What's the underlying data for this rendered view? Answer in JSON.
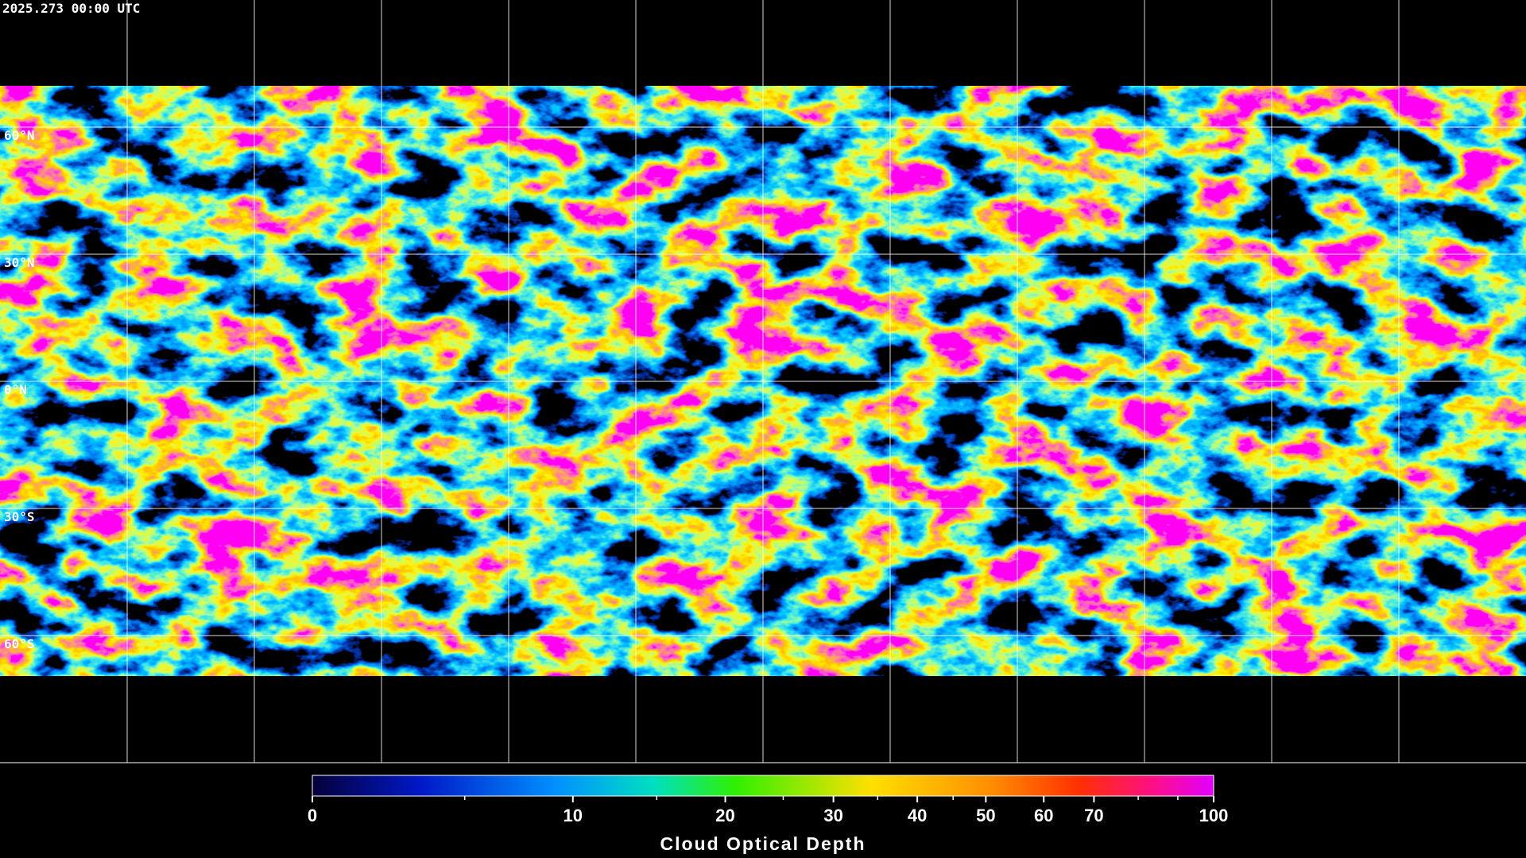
{
  "header": {
    "timestamp": "2025.273 00:00 UTC"
  },
  "map": {
    "lat_lines": [
      {
        "value": 60,
        "label": "60°N"
      },
      {
        "value": 30,
        "label": "30°N"
      },
      {
        "value": 0,
        "label": "0°N"
      },
      {
        "value": -30,
        "label": "30°S"
      },
      {
        "value": -60,
        "label": "60°S"
      }
    ]
  },
  "colorbar": {
    "label": "Cloud Optical Depth",
    "lim": [
      0,
      100
    ],
    "ticks": [
      0,
      10,
      20,
      30,
      40,
      50,
      60,
      70,
      100
    ],
    "minor_ticks": [
      5,
      15,
      25,
      35,
      45,
      80,
      90
    ]
  }
}
